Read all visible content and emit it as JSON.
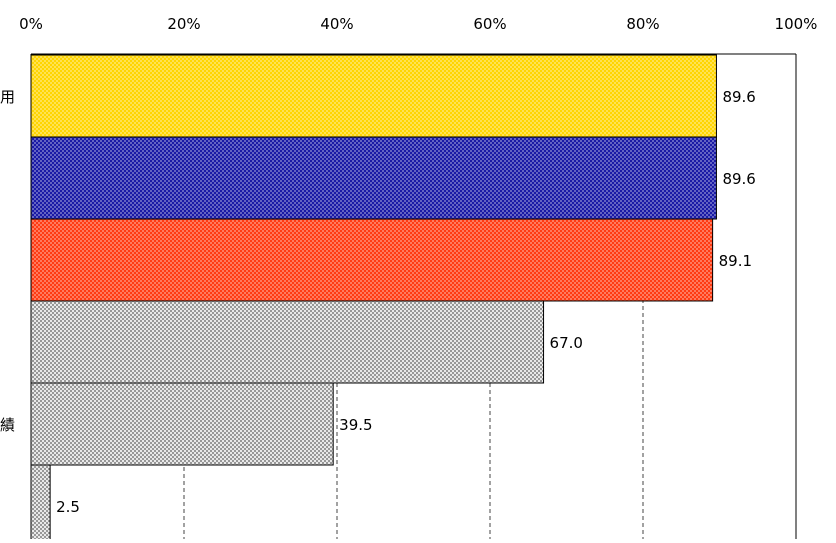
{
  "chart_data": {
    "type": "bar",
    "orientation": "horizontal",
    "title": "",
    "xlabel": "",
    "ylabel": "",
    "xlim": [
      0,
      100
    ],
    "x_ticks": [
      "0%",
      "20%",
      "40%",
      "60%",
      "80%",
      "100%"
    ],
    "x_axis_position": "top",
    "grid": true,
    "category_labels_visible": [
      "用",
      "",
      "",
      "",
      "績",
      ""
    ],
    "values": [
      89.6,
      89.6,
      89.1,
      67.0,
      39.5,
      2.5
    ],
    "value_labels": [
      "89.6",
      "89.6",
      "89.1",
      "67.0",
      "39.5",
      "2.5"
    ],
    "bar_colors": [
      "#ffd500",
      "#1a1aa6",
      "#ff3b12",
      "#d6d6d6",
      "#d6d6d6",
      "#d6d6d6"
    ],
    "bar_fill": "dotted"
  }
}
